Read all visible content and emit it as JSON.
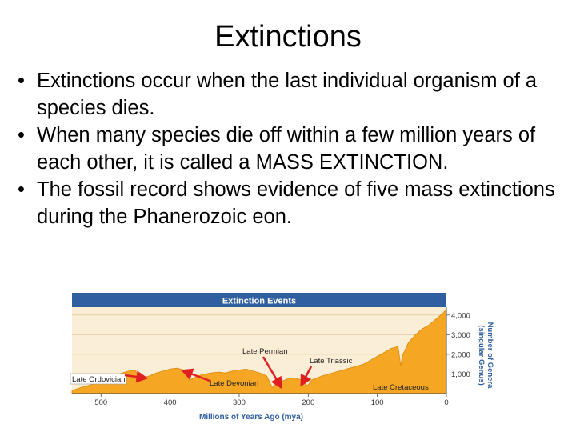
{
  "slide": {
    "title": "Extinctions",
    "bullet_symbol": "•",
    "bullets": [
      "Extinctions occur when the last individual organism of a species dies.",
      "When many species die off within a few million years of each other, it is called a MASS EXTINCTION.",
      "The fossil record shows evidence of five mass extinctions during the Phanerozoic eon."
    ]
  },
  "chart_data": {
    "type": "area",
    "title": "Extinction Events",
    "xlabel": "Millions of Years Ago (mya)",
    "ylabel": "Number of Genera (singular Genus)",
    "x_reversed": true,
    "xlim": [
      542,
      0
    ],
    "ylim": [
      0,
      4400
    ],
    "x_ticks": [
      "500",
      "400",
      "300",
      "200",
      "100",
      "0"
    ],
    "x_tick_values": [
      500,
      400,
      300,
      200,
      100,
      0
    ],
    "y_ticks": [
      "1,000",
      "2,000",
      "3,000",
      "4,000"
    ],
    "y_tick_values": [
      1000,
      2000,
      3000,
      4000
    ],
    "grid": true,
    "colors": {
      "title_bar": "#2f5f9e",
      "area": "#f5a623",
      "plot_bg": "#fbeed6",
      "arrow": "#e02020",
      "axis_text": "#2f5f9e"
    },
    "x": [
      542,
      530,
      510,
      490,
      480,
      470,
      460,
      450,
      445,
      440,
      430,
      420,
      410,
      400,
      390,
      380,
      372,
      365,
      360,
      350,
      340,
      330,
      320,
      310,
      300,
      290,
      280,
      270,
      260,
      252,
      248,
      240,
      230,
      220,
      210,
      201,
      195,
      180,
      160,
      140,
      120,
      100,
      90,
      80,
      70,
      66,
      64,
      55,
      45,
      35,
      25,
      15,
      5,
      0
    ],
    "values": [
      150,
      300,
      500,
      700,
      900,
      1050,
      1150,
      1200,
      700,
      800,
      900,
      1050,
      1150,
      1250,
      1300,
      1200,
      700,
      800,
      900,
      1000,
      1050,
      1100,
      1050,
      1150,
      1200,
      1250,
      1150,
      1050,
      900,
      300,
      450,
      600,
      750,
      800,
      700,
      400,
      700,
      900,
      1100,
      1300,
      1500,
      1900,
      2100,
      2300,
      2400,
      1400,
      1900,
      2600,
      3000,
      3300,
      3500,
      3800,
      4100,
      4300
    ],
    "annotations": [
      {
        "label": "Late Ordovician",
        "x": 445
      },
      {
        "label": "Late Devonian",
        "x": 372
      },
      {
        "label": "Late Permian",
        "x": 252
      },
      {
        "label": "Late Triassic",
        "x": 201
      },
      {
        "label": "Late Cretaceous",
        "x": 66
      }
    ]
  }
}
